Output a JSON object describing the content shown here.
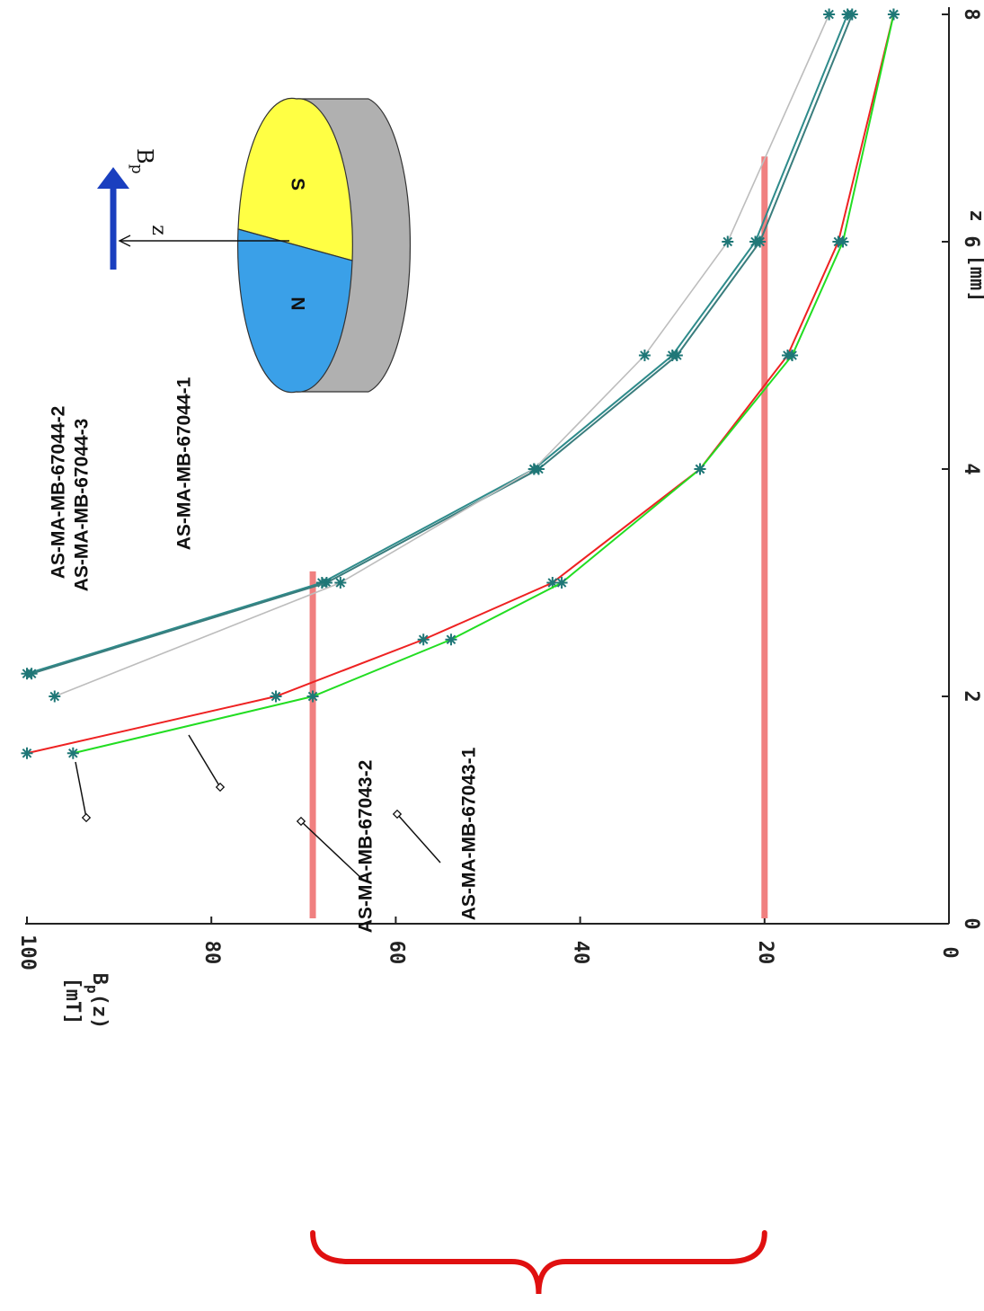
{
  "chart_data": {
    "type": "line",
    "orientation": "rotated-90-clockwise",
    "xlabel": "z",
    "xunit": "[mm]",
    "ylabel_main": "B",
    "ylabel_sub": "p",
    "ylabel_arg": "(z)",
    "yunit": "[mT]",
    "xlim": [
      0,
      8
    ],
    "ylim": [
      0,
      100
    ],
    "x_ticks": [
      "0",
      "2",
      "4",
      "6",
      "8"
    ],
    "y_ticks": [
      "0",
      "20",
      "40",
      "60",
      "80",
      "100"
    ],
    "series": [
      {
        "name": "AS-MA-MB-67044-2",
        "color": "#2e8b8b",
        "x": [
          2.2,
          3,
          4,
          5,
          6,
          8
        ],
        "y": [
          100,
          68,
          45,
          30,
          21,
          11
        ]
      },
      {
        "name": "AS-MA-MB-67044-3",
        "color": "#3a7d7d",
        "x": [
          2.2,
          3,
          4,
          5,
          6,
          8
        ],
        "y": [
          99.5,
          67.5,
          44.5,
          29.5,
          20.5,
          10.5
        ]
      },
      {
        "name": "AS-MA-MB-67044-1",
        "color": "#bdbdbd",
        "x": [
          2.0,
          3,
          4,
          5,
          6,
          8
        ],
        "y": [
          97,
          66,
          45,
          33,
          24,
          13
        ]
      },
      {
        "name": "AS-MA-MB-67043-2",
        "color": "#ee2222",
        "x": [
          1.5,
          2,
          2.5,
          3,
          4,
          5,
          6,
          8
        ],
        "y": [
          100,
          73,
          57,
          43,
          27,
          17.5,
          12,
          6
        ]
      },
      {
        "name": "AS-MA-MB-67043-1",
        "color": "#22dd22",
        "x": [
          1.5,
          2,
          2.5,
          3,
          4,
          5,
          6,
          8
        ],
        "y": [
          95,
          69,
          54,
          42,
          27,
          17,
          11.5,
          6
        ]
      }
    ],
    "reference_lines": {
      "y": [
        69,
        20
      ],
      "color": "#f08080"
    },
    "legend_placement": "annotations-with-leader-lines",
    "grid": false
  },
  "inset": {
    "label_n": "N",
    "label_s": "S",
    "arrow_label_main": "B",
    "arrow_label_sub": "p",
    "axis_label": "z",
    "color_n": "#3aa0e8",
    "color_s": "#ffff44",
    "color_side": "#b0b0b0",
    "color_arrow": "#1a3fbf"
  },
  "brace": {
    "color": "#e01010"
  }
}
